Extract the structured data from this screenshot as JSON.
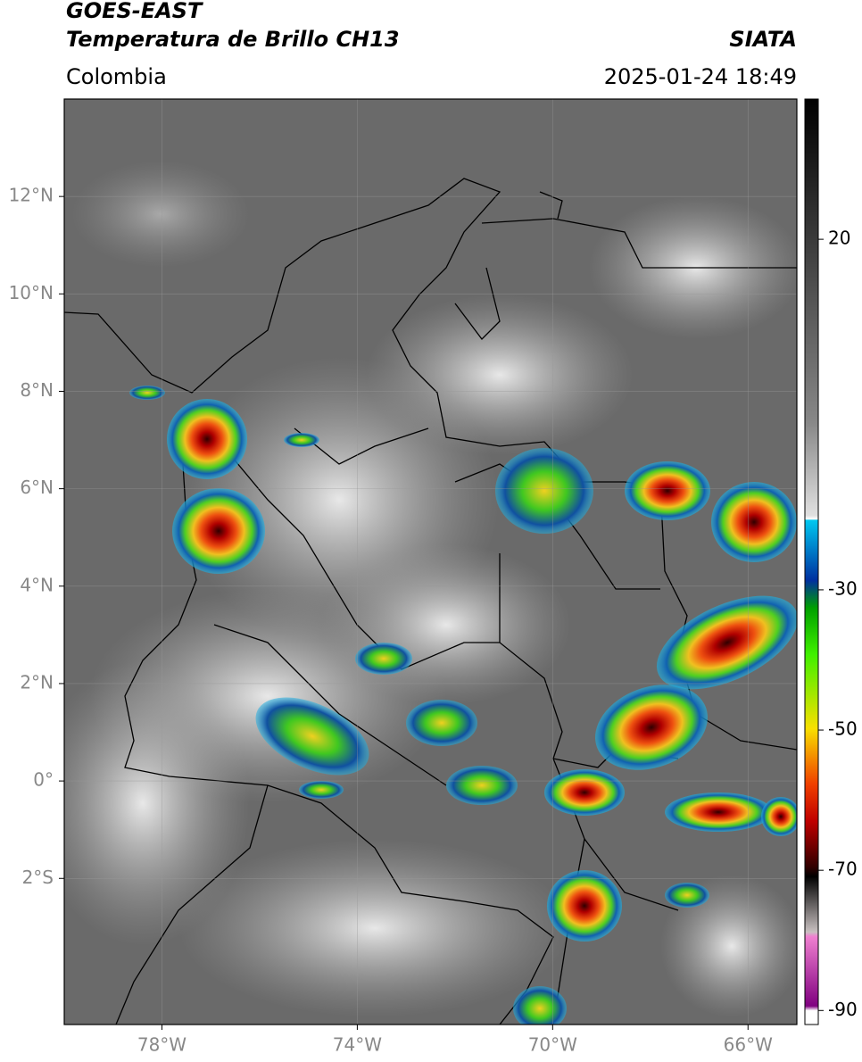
{
  "header": {
    "title": "GOES-EAST",
    "subtitle": "Temperatura de Brillo CH13",
    "region": "Colombia",
    "source": "SIATA",
    "datetime": "2025-01-24 18:49"
  },
  "map": {
    "xlim": [
      -80,
      -65
    ],
    "ylim": [
      -5,
      14
    ],
    "xticks": [
      {
        "value": -78,
        "label": "78°W"
      },
      {
        "value": -74,
        "label": "74°W"
      },
      {
        "value": -70,
        "label": "70°W"
      },
      {
        "value": -66,
        "label": "66°W"
      }
    ],
    "yticks": [
      {
        "value": 12,
        "label": "12°N"
      },
      {
        "value": 10,
        "label": "10°N"
      },
      {
        "value": 8,
        "label": "8°N"
      },
      {
        "value": 6,
        "label": "6°N"
      },
      {
        "value": 4,
        "label": "4°N"
      },
      {
        "value": 2,
        "label": "2°N"
      },
      {
        "value": 0,
        "label": "0°"
      },
      {
        "value": -2,
        "label": "2°S"
      }
    ],
    "grid": true
  },
  "colorbar": {
    "lim": [
      -92,
      40
    ],
    "ticks": [
      20,
      -30,
      -50,
      -70,
      -90
    ]
  }
}
